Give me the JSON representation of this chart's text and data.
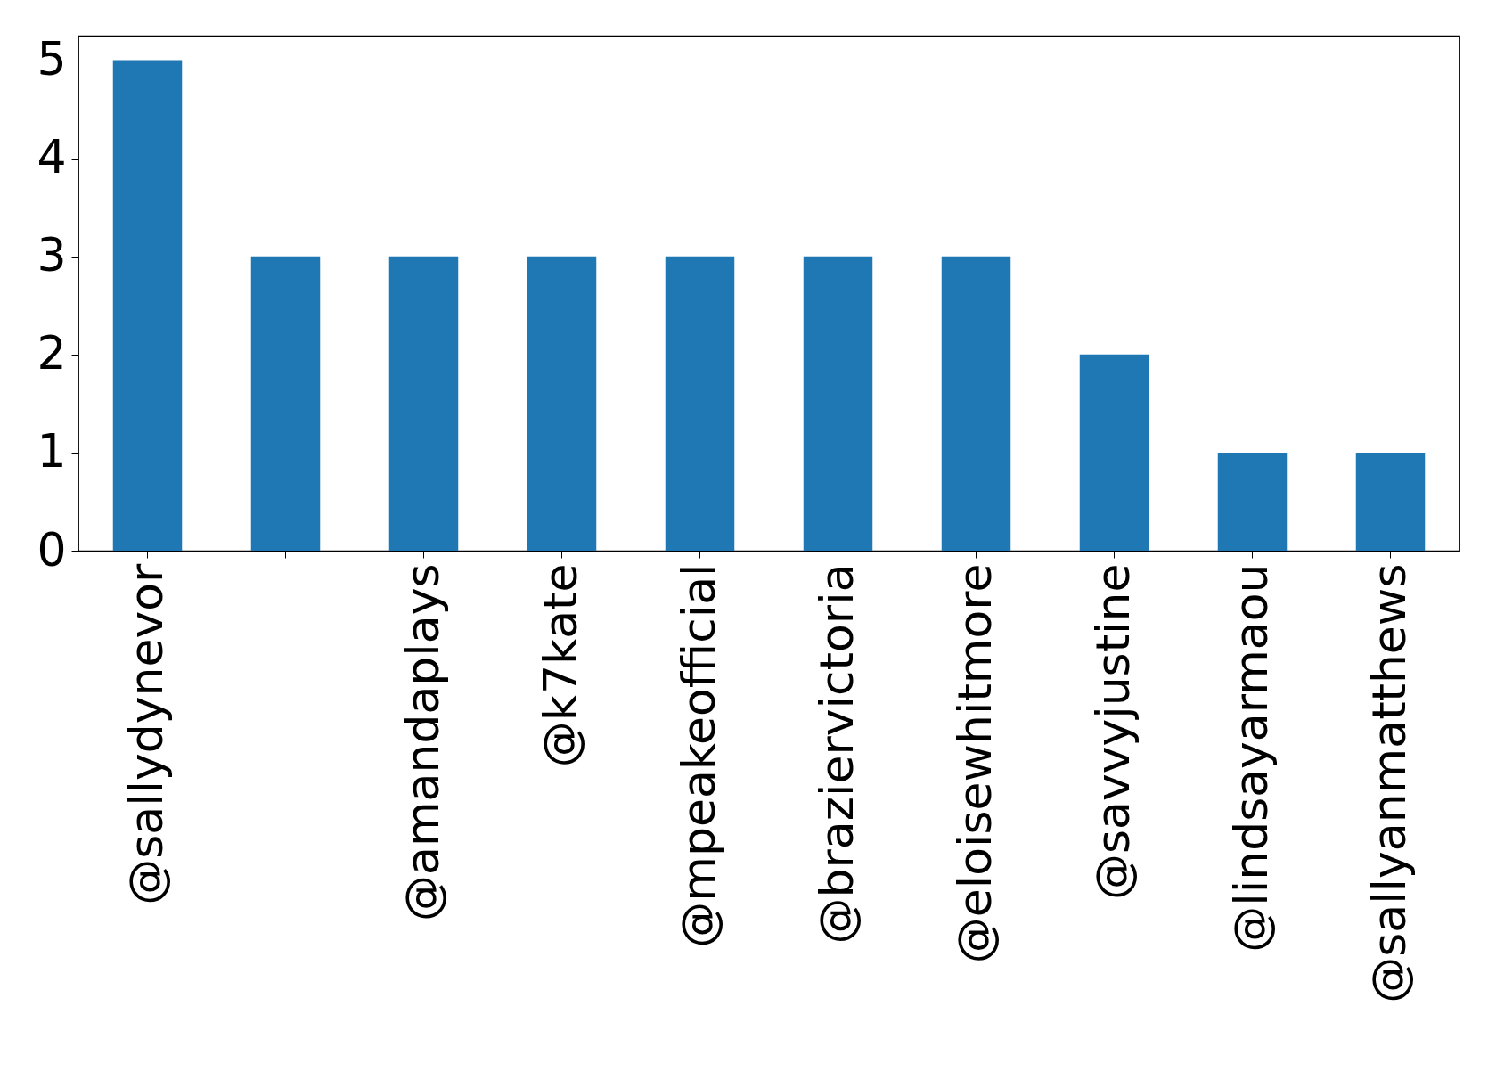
{
  "chart_data": {
    "type": "bar",
    "categories": [
      "@sallydynevor",
      null,
      "@amandaplays",
      "@k7kate",
      "@mpeakeofficial",
      "@braziervictoria",
      "@eloisewhitmore",
      "@savvyjustine",
      "@lindsayarmaou",
      "@sallyanmatthews"
    ],
    "values": [
      5,
      3,
      3,
      3,
      3,
      3,
      3,
      2,
      1,
      1
    ],
    "color": "#1f77b4",
    "ylim": [
      0,
      5.25
    ],
    "yticks": [
      0,
      1,
      2,
      3,
      4,
      5
    ],
    "grid": false
  }
}
